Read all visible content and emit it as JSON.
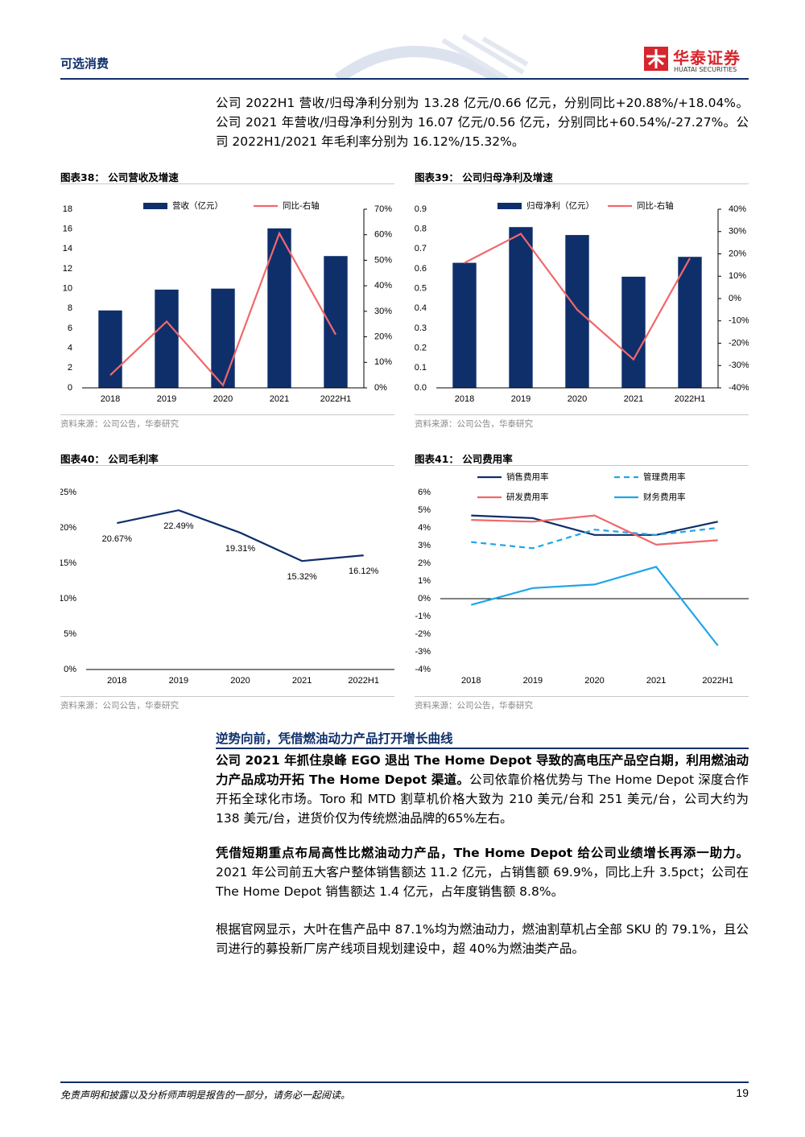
{
  "header": {
    "section": "可选消费",
    "logo": "华泰证券",
    "logo_en": "HUATAI SECURITIES"
  },
  "intro": "公司 2022H1 营收/归母净利分别为 13.28 亿元/0.66 亿元，分别同比+20.88%/+18.04%。公司 2021 年营收/归母净利分别为 16.07 亿元/0.56 亿元，分别同比+60.54%/-27.27%。公司 2022H1/2021 年毛利率分别为 16.12%/15.32%。",
  "chart_data": [
    {
      "type": "combo",
      "title": "图表38： 公司营收及增速",
      "source": "资料来源：公司公告，华泰研究",
      "categories": [
        "2018",
        "2019",
        "2020",
        "2021",
        "2022H1"
      ],
      "series": [
        {
          "name": "营收（亿元）",
          "type": "bar",
          "color": "#0f2f6b",
          "values": [
            7.8,
            9.9,
            10.0,
            16.07,
            13.28
          ]
        },
        {
          "name": "同比-右轴",
          "type": "line",
          "axis": "y2",
          "color": "#f0686b",
          "values": [
            5,
            26,
            1,
            60.54,
            20.88
          ]
        }
      ],
      "ylim": [
        0,
        18
      ],
      "yticks": [
        0,
        2,
        4,
        6,
        8,
        10,
        12,
        14,
        16,
        18
      ],
      "y2lim": [
        0,
        70
      ],
      "y2ticks": [
        {
          "value": 0,
          "label": "0%"
        },
        {
          "value": 10,
          "label": "10%"
        },
        {
          "value": 20,
          "label": "20%"
        },
        {
          "value": 30,
          "label": "30%"
        },
        {
          "value": 40,
          "label": "40%"
        },
        {
          "value": 50,
          "label": "50%"
        },
        {
          "value": 60,
          "label": "60%"
        },
        {
          "value": 70,
          "label": "70%"
        }
      ]
    },
    {
      "type": "combo",
      "title": "图表39： 公司归母净利及增速",
      "source": "资料来源：公司公告，华泰研究",
      "categories": [
        "2018",
        "2019",
        "2020",
        "2021",
        "2022H1"
      ],
      "series": [
        {
          "name": "归母净利（亿元）",
          "type": "bar",
          "color": "#0f2f6b",
          "values": [
            0.63,
            0.81,
            0.77,
            0.56,
            0.66
          ]
        },
        {
          "name": "同比-右轴",
          "type": "line",
          "axis": "y2",
          "color": "#f0686b",
          "values": [
            16,
            29,
            -5,
            -27.27,
            18.04
          ]
        }
      ],
      "ylim": [
        0,
        0.9
      ],
      "yticks": [
        {
          "value": 0,
          "label": "0.0"
        },
        0.1,
        0.2,
        0.3,
        0.4,
        0.5,
        0.6,
        0.7,
        0.8,
        0.9
      ],
      "y2lim": [
        -40,
        40
      ],
      "y2ticks": [
        {
          "value": -40,
          "label": "-40%"
        },
        {
          "value": -30,
          "label": "-30%"
        },
        {
          "value": -20,
          "label": "-20%"
        },
        {
          "value": -10,
          "label": "-10%"
        },
        {
          "value": 0,
          "label": "0%"
        },
        {
          "value": 10,
          "label": "10%"
        },
        {
          "value": 20,
          "label": "20%"
        },
        {
          "value": 30,
          "label": "30%"
        },
        {
          "value": 40,
          "label": "40%"
        }
      ]
    },
    {
      "type": "line",
      "title": "图表40： 公司毛利率",
      "source": "资料来源：公司公告，华泰研究",
      "categories": [
        "2018",
        "2019",
        "2020",
        "2021",
        "2022H1"
      ],
      "values": [
        20.67,
        22.49,
        19.31,
        15.32,
        16.12
      ],
      "value_labels": [
        "20.67%",
        "22.49%",
        "19.31%",
        "15.32%",
        "16.12%"
      ],
      "color": "#0f2f6b",
      "ylim": [
        0,
        25
      ],
      "yticks": [
        {
          "value": 0,
          "label": "0%"
        },
        {
          "value": 5,
          "label": "5%"
        },
        {
          "value": 10,
          "label": "10%"
        },
        {
          "value": 15,
          "label": "15%"
        },
        {
          "value": 20,
          "label": "20%"
        },
        {
          "value": 25,
          "label": "25%"
        }
      ]
    },
    {
      "type": "line",
      "title": "图表41： 公司费用率",
      "source": "资料来源：公司公告，华泰研究",
      "categories": [
        "2018",
        "2019",
        "2020",
        "2021",
        "2022H1"
      ],
      "series": [
        {
          "name": "销售费用率",
          "color": "#0f2f6b",
          "values": [
            4.7,
            4.55,
            3.6,
            3.6,
            4.35
          ]
        },
        {
          "name": "管理费用率",
          "color": "#1ea5e9",
          "dashed": true,
          "values": [
            3.2,
            2.85,
            3.9,
            3.6,
            4.0
          ]
        },
        {
          "name": "研发费用率",
          "color": "#f0686b",
          "values": [
            4.45,
            4.35,
            4.7,
            3.05,
            3.3
          ]
        },
        {
          "name": "财务费用率",
          "color": "#1ea5e9",
          "values": [
            -0.35,
            0.6,
            0.8,
            1.8,
            -2.65
          ]
        }
      ],
      "ylim": [
        -4,
        6
      ],
      "yticks": [
        {
          "value": -4,
          "label": "-4%"
        },
        {
          "value": -3,
          "label": "-3%"
        },
        {
          "value": -2,
          "label": "-2%"
        },
        {
          "value": -1,
          "label": "-1%"
        },
        {
          "value": 0,
          "label": "0%"
        },
        {
          "value": 1,
          "label": "1%"
        },
        {
          "value": 2,
          "label": "2%"
        },
        {
          "value": 3,
          "label": "3%"
        },
        {
          "value": 4,
          "label": "4%"
        },
        {
          "value": 5,
          "label": "5%"
        },
        {
          "value": 6,
          "label": "6%"
        }
      ]
    }
  ],
  "section_heading": "逆势向前，凭借燃油动力产品打开增长曲线",
  "paragraphs": [
    {
      "bold": "公司 2021 年抓住泉峰 EGO 退出 The Home Depot 导致的高电压产品空白期，利用燃油动力产品成功开拓 The Home Depot 渠道。",
      "text": "公司依靠价格优势与 The Home Depot 深度合作开拓全球化市场。Toro 和 MTD 割草机价格大致为 210 美元/台和 251 美元/台，公司大约为 138 美元/台，进货价仅为传统燃油品牌的65%左右。"
    },
    {
      "bold": "凭借短期重点布局高性比燃油动力产品，The Home Depot 给公司业绩增长再添一助力。",
      "text": "2021 年公司前五大客户整体销售额达 11.2 亿元，占销售额 69.9%，同比上升 3.5pct；公司在 The Home Depot 销售额达 1.4 亿元，占年度销售额 8.8%。"
    },
    {
      "text": "根据官网显示，大叶在售产品中 87.1%均为燃油动力，燃油割草机占全部 SKU 的 79.1%，且公司进行的募投新厂房产线项目规划建设中，超 40%为燃油类产品。"
    }
  ],
  "footer": {
    "disclaimer": "免责声明和披露以及分析师声明是报告的一部分，请务必一起阅读。",
    "page": "19"
  }
}
